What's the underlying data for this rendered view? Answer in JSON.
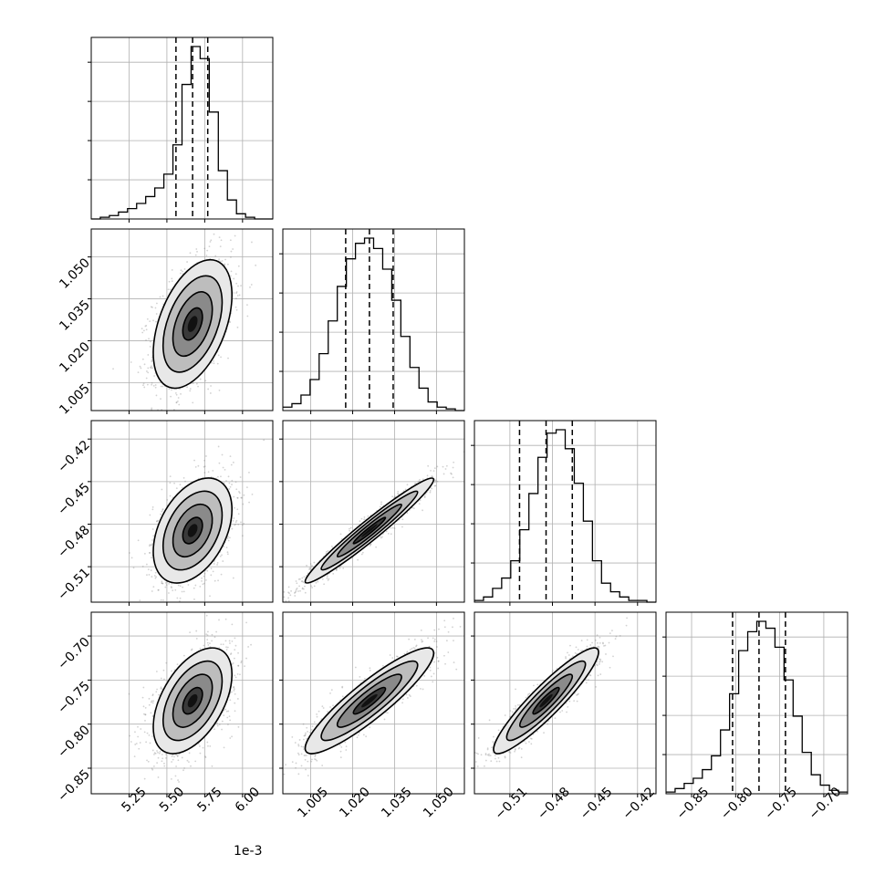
{
  "chart_data": {
    "type": "corner",
    "grid": true,
    "colors": {
      "axes": "#000000",
      "grid": "#b0b0b0",
      "scatter": "#7f7f7f",
      "line": "#000000"
    },
    "x_offset_label": "1e-3",
    "parameters": [
      {
        "ticks": [
          "5.25",
          "5.50",
          "5.75",
          "6.00"
        ],
        "range": [
          5.0,
          6.2
        ],
        "median": 5.67,
        "q16": 5.56,
        "q84": 5.77,
        "hist": {
          "edges": [
            5.0,
            5.06,
            5.12,
            5.18,
            5.24,
            5.3,
            5.36,
            5.42,
            5.48,
            5.54,
            5.6,
            5.66,
            5.72,
            5.78,
            5.84,
            5.9,
            5.96,
            6.02,
            6.08,
            6.14,
            6.2
          ],
          "counts": [
            0.0,
            0.01,
            0.02,
            0.04,
            0.06,
            0.09,
            0.13,
            0.18,
            0.26,
            0.43,
            0.78,
            1.0,
            0.93,
            0.62,
            0.28,
            0.11,
            0.03,
            0.01,
            0.0,
            0.0
          ]
        }
      },
      {
        "ticks": [
          "1.005",
          "1.020",
          "1.035",
          "1.050"
        ],
        "range": [
          0.995,
          1.06
        ],
        "median": 1.026,
        "q16": 1.0175,
        "q84": 1.0345,
        "hist": {
          "edges": [
            0.995,
            0.99825,
            1.0015,
            1.00475,
            1.008,
            1.01125,
            1.0145,
            1.01775,
            1.021,
            1.02425,
            1.0275,
            1.03075,
            1.034,
            1.03725,
            1.0405,
            1.04375,
            1.047,
            1.05025,
            1.0535,
            1.05675,
            1.06
          ],
          "counts": [
            0.02,
            0.04,
            0.09,
            0.18,
            0.33,
            0.52,
            0.72,
            0.88,
            0.97,
            1.0,
            0.94,
            0.82,
            0.64,
            0.43,
            0.25,
            0.13,
            0.05,
            0.02,
            0.01,
            0.0
          ]
        }
      },
      {
        "ticks": [
          "−0.51",
          "−0.48",
          "−0.45",
          "−0.42"
        ],
        "range": [
          -0.535,
          -0.407
        ],
        "median": -0.4845,
        "q16": -0.5032,
        "q84": -0.466,
        "hist": {
          "edges": [
            -0.535,
            -0.5286,
            -0.5222,
            -0.5158,
            -0.5094,
            -0.503,
            -0.4966,
            -0.4902,
            -0.4838,
            -0.4774,
            -0.471,
            -0.4646,
            -0.4582,
            -0.4518,
            -0.4454,
            -0.439,
            -0.4326,
            -0.4262,
            -0.4198,
            -0.4134,
            -0.407
          ],
          "counts": [
            0.01,
            0.03,
            0.08,
            0.14,
            0.24,
            0.42,
            0.63,
            0.84,
            0.98,
            1.0,
            0.89,
            0.69,
            0.47,
            0.24,
            0.11,
            0.06,
            0.03,
            0.01,
            0.01,
            0.0
          ]
        }
      },
      {
        "ticks": [
          "−0.85",
          "−0.80",
          "−0.75",
          "−0.70"
        ],
        "range": [
          -0.879,
          -0.673
        ],
        "median": -0.7735,
        "q16": -0.8035,
        "q84": -0.7435,
        "hist": {
          "edges": [
            -0.879,
            -0.8687,
            -0.8584,
            -0.8481,
            -0.8378,
            -0.8275,
            -0.8172,
            -0.8069,
            -0.7966,
            -0.7863,
            -0.776,
            -0.7657,
            -0.7554,
            -0.7451,
            -0.7348,
            -0.7245,
            -0.7142,
            -0.7039,
            -0.6936,
            -0.6833,
            -0.673
          ],
          "counts": [
            0.01,
            0.03,
            0.06,
            0.09,
            0.14,
            0.22,
            0.37,
            0.58,
            0.83,
            0.94,
            1.0,
            0.96,
            0.85,
            0.66,
            0.45,
            0.24,
            0.11,
            0.05,
            0.02,
            0.01
          ]
        }
      }
    ],
    "pairs": [
      {
        "x": 0,
        "y": 1,
        "mean": [
          5.67,
          1.026
        ],
        "sd": [
          0.13,
          0.0115
        ],
        "rho": 0.45
      },
      {
        "x": 0,
        "y": 2,
        "mean": [
          5.67,
          -0.4845
        ],
        "sd": [
          0.13,
          0.0185
        ],
        "rho": 0.4
      },
      {
        "x": 1,
        "y": 2,
        "mean": [
          1.026,
          -0.4845
        ],
        "sd": [
          0.0115,
          0.0185
        ],
        "rho": 0.97
      },
      {
        "x": 0,
        "y": 3,
        "mean": [
          5.67,
          -0.7735
        ],
        "sd": [
          0.13,
          0.03
        ],
        "rho": 0.5
      },
      {
        "x": 1,
        "y": 3,
        "mean": [
          1.026,
          -0.7735
        ],
        "sd": [
          0.0115,
          0.03
        ],
        "rho": 0.9
      },
      {
        "x": 2,
        "y": 3,
        "mean": [
          -0.4845,
          -0.7735
        ],
        "sd": [
          0.0185,
          0.03
        ],
        "rho": 0.92
      }
    ]
  }
}
